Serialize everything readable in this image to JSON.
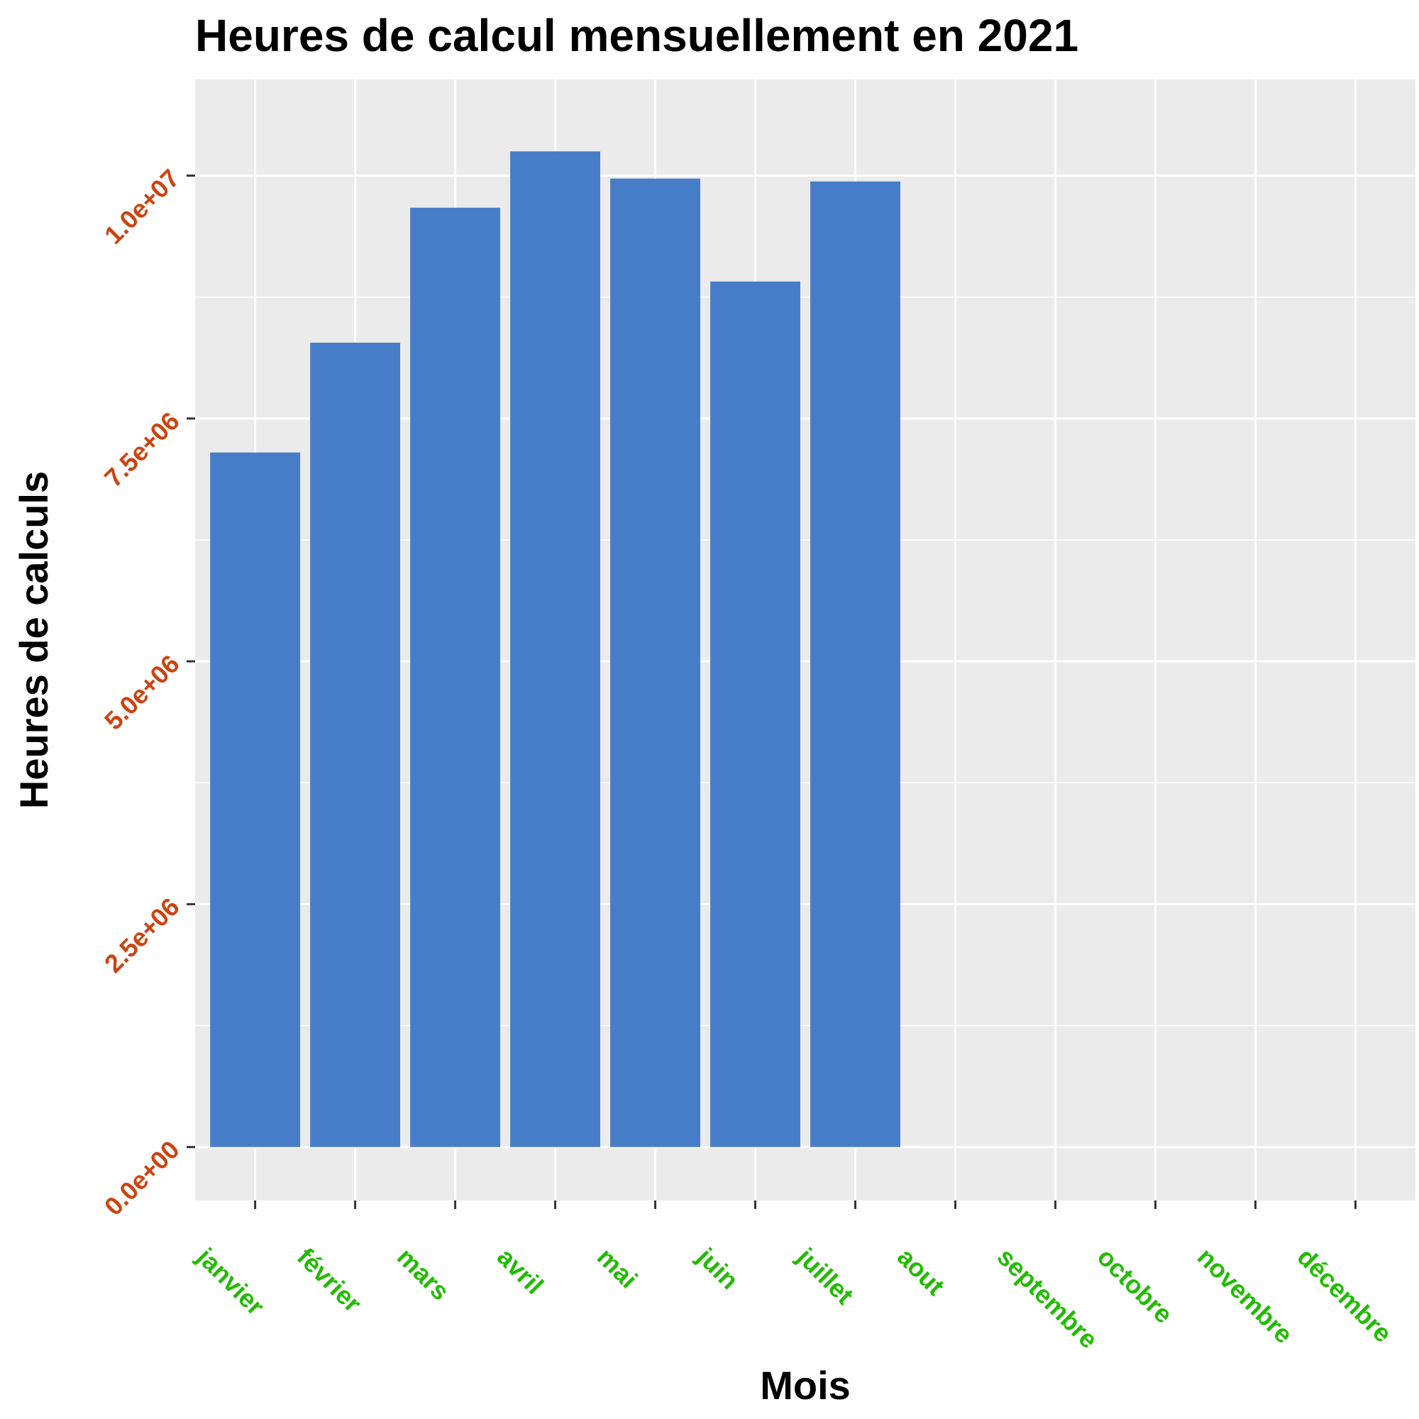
{
  "chart_data": {
    "type": "bar",
    "title": "Heures de calcul mensuellement en 2021",
    "xlabel": "Mois",
    "ylabel": "Heures de calculs",
    "categories": [
      "janvier",
      "février",
      "mars",
      "avril",
      "mai",
      "juin",
      "juillet",
      "aout",
      "septembre",
      "octobre",
      "novembre",
      "décembre"
    ],
    "values": [
      7150000,
      8280000,
      9670000,
      10250000,
      9970000,
      8910000,
      9940000,
      null,
      null,
      null,
      null,
      null
    ],
    "ylim": [
      -550000,
      10990000
    ],
    "yticks": [
      0,
      2500000,
      5000000,
      7500000,
      10000000
    ],
    "ytick_labels": [
      "0.0e+00",
      "2.5e+06",
      "5.0e+06",
      "7.5e+06",
      "1.0e+07"
    ],
    "grid": true,
    "legend": "none",
    "colors": {
      "bar": "#477dc8",
      "panel_background": "#ebebeb",
      "grid": "#ffffff",
      "xtick_label": "#22bb00",
      "ytick_label": "#cc4411",
      "tick": "#333333"
    }
  }
}
